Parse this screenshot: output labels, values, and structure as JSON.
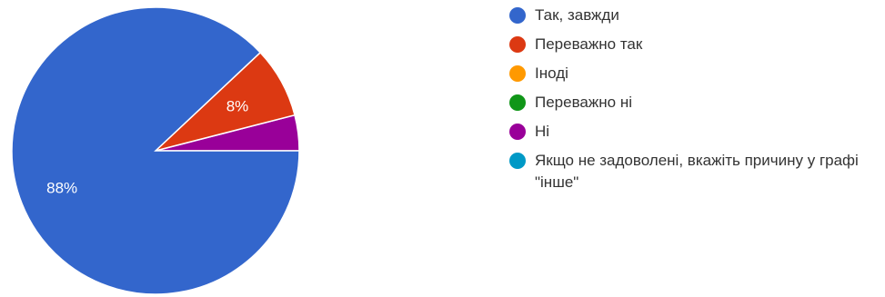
{
  "chart_data": {
    "type": "pie",
    "slices": [
      {
        "label": "Так, завжди",
        "value": 88,
        "color": "#3366cc",
        "data_label": "88%"
      },
      {
        "label": "Переважно так",
        "value": 8,
        "color": "#dc3912",
        "data_label": "8%"
      },
      {
        "label": "Іноді",
        "value": 0,
        "color": "#ff9900",
        "data_label": ""
      },
      {
        "label": "Переважно ні",
        "value": 0,
        "color": "#109618",
        "data_label": ""
      },
      {
        "label": "Ні",
        "value": 4,
        "color": "#990099",
        "data_label": ""
      },
      {
        "label": "Якщо не задоволені, вкажіть причину у графі \"інше\"",
        "value": 0,
        "color": "#0099c6",
        "data_label": ""
      }
    ],
    "legend_position": "right"
  }
}
